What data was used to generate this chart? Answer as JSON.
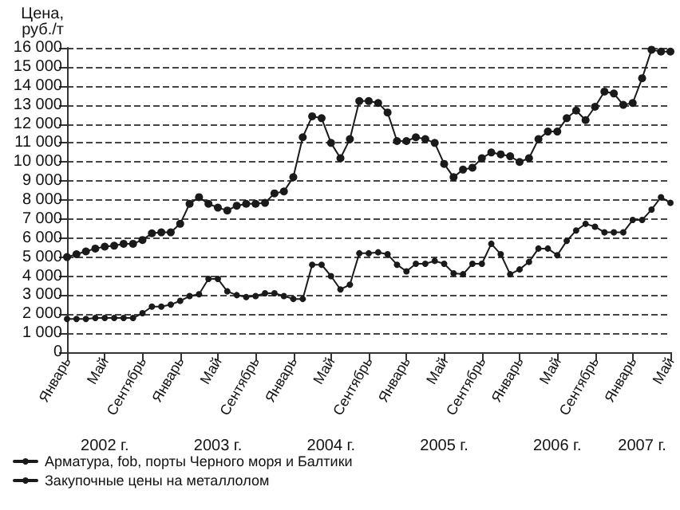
{
  "chart_data": {
    "type": "line",
    "ylabel": "Цена,\nруб./т",
    "categories": [
      "Январь",
      null,
      null,
      null,
      "Май",
      null,
      null,
      null,
      "Сентябрь",
      null,
      null,
      null,
      "Январь",
      null,
      null,
      null,
      "Май",
      null,
      null,
      null,
      "Сентябрь",
      null,
      null,
      null,
      "Январь",
      null,
      null,
      null,
      "Май",
      null,
      null,
      null,
      "Сентябрь",
      null,
      null,
      null,
      "Январь",
      null,
      null,
      null,
      "Май",
      null,
      null,
      null,
      "Сентябрь",
      null,
      null,
      null,
      "Январь",
      null,
      null,
      null,
      "Май",
      null,
      null,
      null,
      "Сентябрь",
      null,
      null,
      null,
      "Январь",
      null,
      null,
      null,
      "Май"
    ],
    "series": [
      {
        "name": "Арматура, fob, порты Черного моря и Балтики",
        "color": "#1a1a1a",
        "values": [
          5000,
          5150,
          5300,
          5450,
          5550,
          5600,
          5700,
          5700,
          5900,
          6250,
          6300,
          6300,
          6750,
          7800,
          8150,
          7800,
          7600,
          7450,
          7700,
          7800,
          7800,
          7850,
          8350,
          8450,
          9200,
          11300,
          12400,
          12300,
          11000,
          10200,
          11200,
          13200,
          13200,
          13100,
          12600,
          11100,
          11100,
          11300,
          11200,
          11000,
          9900,
          9200,
          9600,
          9700,
          10200,
          10500,
          10400,
          10300,
          10000,
          10200,
          11200,
          11600,
          11600,
          12300,
          12700,
          12200,
          12900,
          13700,
          13600,
          13000,
          13100,
          14400,
          15900,
          15800,
          15800
        ]
      },
      {
        "name": "Закупочные цены на металлолом",
        "color": "#1a1a1a",
        "values": [
          1750,
          1750,
          1750,
          1800,
          1800,
          1800,
          1800,
          1800,
          2050,
          2400,
          2400,
          2500,
          2700,
          2950,
          3050,
          3850,
          3850,
          3200,
          3000,
          2900,
          2950,
          3100,
          3100,
          2950,
          2800,
          2800,
          4600,
          4600,
          4000,
          3300,
          3550,
          5200,
          5200,
          5250,
          5150,
          4600,
          4250,
          4650,
          4650,
          4800,
          4650,
          4150,
          4100,
          4650,
          4650,
          5700,
          5150,
          4100,
          4350,
          4750,
          5450,
          5450,
          5100,
          5850,
          6400,
          6750,
          6600,
          6300,
          6300,
          6300,
          6950,
          6950,
          7500,
          8150,
          7850
        ]
      }
    ],
    "ylim": [
      0,
      16000
    ],
    "yticks": [
      0,
      {
        "value": 1000,
        "label": "1 000"
      },
      {
        "value": 2000,
        "label": "2 000"
      },
      {
        "value": 3000,
        "label": "3 000"
      },
      {
        "value": 4000,
        "label": "4 000"
      },
      {
        "value": 5000,
        "label": "5 000"
      },
      {
        "value": 6000,
        "label": "6 000"
      },
      {
        "value": 7000,
        "label": "7 000"
      },
      {
        "value": 8000,
        "label": "8 000"
      },
      {
        "value": 9000,
        "label": "9 000"
      },
      {
        "value": 10000,
        "label": "10 000"
      },
      {
        "value": 11000,
        "label": "11 000"
      },
      {
        "value": 12000,
        "label": "12 000"
      },
      {
        "value": 13000,
        "label": "13 000"
      },
      {
        "value": 14000,
        "label": "14 000"
      },
      {
        "value": 15000,
        "label": "15 000"
      },
      {
        "value": 16000,
        "label": "16 000"
      }
    ],
    "annotations": [
      "2002 г.",
      "2003 г.",
      "2004 г.",
      "2005 г.",
      "2006 г.",
      "2007 г."
    ],
    "grid": "y",
    "legend": "bottom left",
    "marker": "circle",
    "line_style": "solid"
  }
}
